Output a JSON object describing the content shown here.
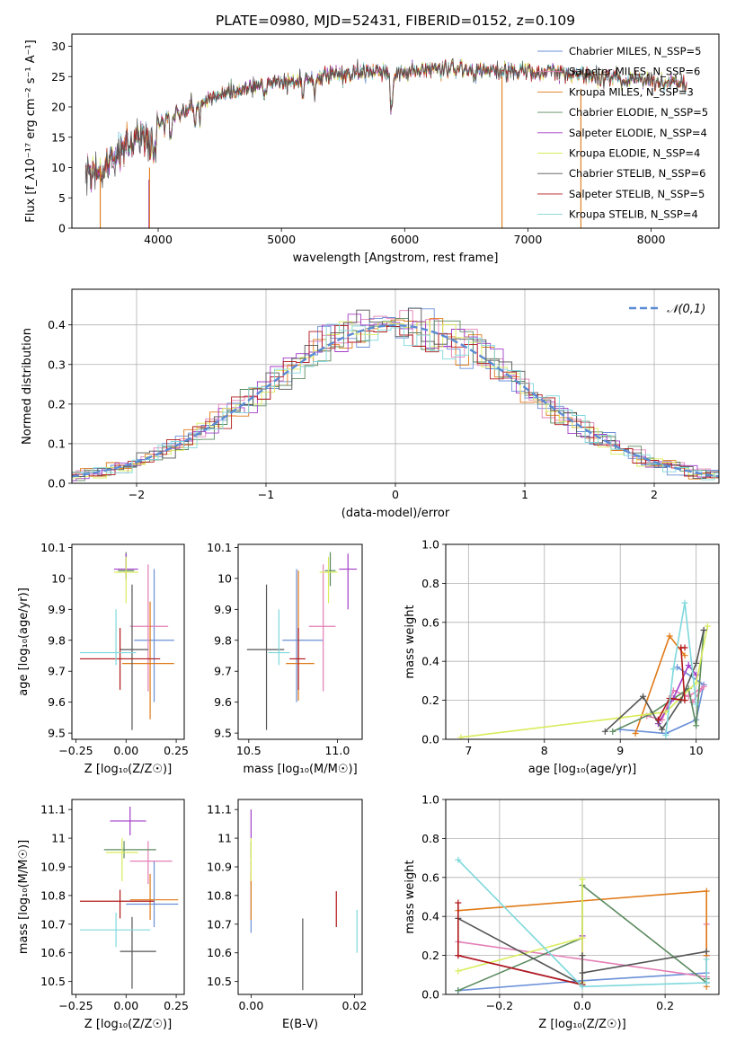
{
  "figure": {
    "title": "PLATE=0980, MJD=52431, FIBERID=0152, z=0.109"
  },
  "colors": {
    "Chabrier MILES": "#6a8fd8",
    "Salpeter MILES": "#e37fb5",
    "Kroupa MILES": "#e07a18",
    "Chabrier ELODIE": "#5a8a5e",
    "Salpeter ELODIE": "#a23dc8",
    "Kroupa ELODIE": "#d9ec5b",
    "Chabrier STELIB": "#555555",
    "Salpeter STELIB": "#b01818",
    "Kroupa STELIB": "#7fd8dc"
  },
  "chart_data": [
    {
      "id": "spectrum",
      "type": "line",
      "xlabel": "wavelength [Angstrom, rest frame]",
      "ylabel": "Flux [f_λ10⁻¹⁷ erg cm⁻² s⁻¹ A⁻¹]",
      "xlim": [
        3300,
        8550
      ],
      "ylim": [
        0,
        32
      ],
      "xticks": [
        4000,
        5000,
        6000,
        7000,
        8000
      ],
      "yticks": [
        0,
        5,
        10,
        15,
        20,
        25,
        30
      ],
      "legend_position": "right",
      "legend": [
        "Chabrier MILES, N_SSP=5",
        "Salpeter MILES, N_SSP=6",
        "Kroupa MILES, N_SSP=3",
        "Chabrier ELODIE, N_SSP=5",
        "Salpeter ELODIE, N_SSP=4",
        "Kroupa ELODIE, N_SSP=4",
        "Chabrier STELIB, N_SSP=6",
        "Salpeter STELIB, N_SSP=5",
        "Kroupa STELIB, N_SSP=4"
      ],
      "continuum": {
        "x": [
          3410,
          3550,
          3700,
          3850,
          3950,
          4050,
          4150,
          4300,
          4450,
          4600,
          4800,
          5000,
          5200,
          5400,
          5600,
          5800,
          5900,
          6000,
          6200,
          6400,
          6600,
          6800,
          7000,
          7200,
          7400,
          7600,
          7800,
          8000,
          8200,
          8300
        ],
        "y": [
          8,
          9.5,
          13,
          15,
          16,
          17.5,
          19,
          20.5,
          21.5,
          22.5,
          23.5,
          24,
          24.7,
          25.3,
          25.7,
          26,
          25.5,
          26,
          26.3,
          26.2,
          26.1,
          26,
          25.9,
          25.6,
          25.3,
          25,
          24.6,
          24.2,
          23.9,
          23.7
        ]
      }
    },
    {
      "id": "residuals",
      "type": "step",
      "xlabel": "(data-model)/error",
      "ylabel": "Normed distribution",
      "xlim": [
        -2.5,
        2.5
      ],
      "ylim": [
        0,
        0.49
      ],
      "xticks": [
        -2,
        -1,
        0,
        1,
        2
      ],
      "xticklabels": [
        "−2",
        "−1",
        "0",
        "1",
        "2"
      ],
      "yticks": [
        0,
        0.1,
        0.2,
        0.3,
        0.4
      ],
      "yticklabels": [
        "0.0",
        "0.1",
        "0.2",
        "0.3",
        "0.4"
      ],
      "grid": true,
      "legend": [
        "𝒩(0,1)"
      ],
      "legend_position": "top-right"
    },
    {
      "id": "age-vs-Z",
      "type": "errorbar",
      "xlabel": "Z [log₁₀(Z/Z☉)]",
      "ylabel": "age  [log₁₀(age/yr)]",
      "xlim": [
        -0.27,
        0.29
      ],
      "ylim": [
        9.48,
        10.11
      ],
      "xticks": [
        -0.25,
        0,
        0.25
      ],
      "xticklabels": [
        "−0.25",
        "0.00",
        "0.25"
      ],
      "yticks": [
        9.5,
        9.6,
        9.7,
        9.8,
        9.9,
        10.0,
        10.1
      ],
      "points": [
        {
          "s": "Chabrier MILES",
          "x": 0.14,
          "xe": [
            0.1,
            0.1
          ],
          "y": 9.8,
          "ye": [
            0.2,
            0.23
          ]
        },
        {
          "s": "Salpeter MILES",
          "x": 0.11,
          "xe": [
            0.09,
            0.1
          ],
          "y": 9.845,
          "ye": [
            0.21,
            0.2
          ]
        },
        {
          "s": "Kroupa MILES",
          "x": 0.12,
          "xe": [
            0.14,
            0.12
          ],
          "y": 9.725,
          "ye": [
            0.18,
            0.2
          ]
        },
        {
          "s": "Chabrier ELODIE",
          "x": 0.0,
          "xe": [
            0.04,
            0.04
          ],
          "y": 10.025,
          "ye": [
            0.03,
            0.06
          ]
        },
        {
          "s": "Salpeter ELODIE",
          "x": 0.0,
          "xe": [
            0.06,
            0.06
          ],
          "y": 10.03,
          "ye": [
            0.03,
            0.05
          ]
        },
        {
          "s": "Kroupa ELODIE",
          "x": 0.0,
          "xe": [
            0.06,
            0.06
          ],
          "y": 10.02,
          "ye": [
            0.1,
            0.05
          ]
        },
        {
          "s": "Chabrier STELIB",
          "x": 0.03,
          "xe": [
            0.06,
            0.08
          ],
          "y": 9.77,
          "ye": [
            0.26,
            0.21
          ]
        },
        {
          "s": "Salpeter STELIB",
          "x": -0.03,
          "xe": [
            0.2,
            0.2
          ],
          "y": 9.74,
          "ye": [
            0.1,
            0.1
          ]
        },
        {
          "s": "Kroupa STELIB",
          "x": -0.05,
          "xe": [
            0.18,
            0.1
          ],
          "y": 9.76,
          "ye": [
            0.04,
            0.14
          ]
        }
      ]
    },
    {
      "id": "age-vs-mass",
      "type": "errorbar",
      "xlabel": "mass [log₁₀(M/M☉)]",
      "ylabel": "",
      "xlim": [
        10.44,
        11.14
      ],
      "ylim": [
        9.48,
        10.11
      ],
      "xticks": [
        10.5,
        11.0
      ],
      "xticklabels": [
        "10.5",
        "11.0"
      ],
      "yticks": [
        9.5,
        9.6,
        9.7,
        9.8,
        9.9,
        10.0,
        10.1
      ],
      "points": [
        {
          "s": "Chabrier MILES",
          "x": 10.77,
          "xe": [
            0.08,
            0.15
          ],
          "y": 9.8,
          "ye": [
            0.2,
            0.23
          ]
        },
        {
          "s": "Salpeter MILES",
          "x": 10.92,
          "xe": [
            0.08,
            0.07
          ],
          "y": 9.845,
          "ye": [
            0.21,
            0.2
          ]
        },
        {
          "s": "Kroupa MILES",
          "x": 10.78,
          "xe": [
            0.07,
            0.09
          ],
          "y": 9.725,
          "ye": [
            0.12,
            0.3
          ]
        },
        {
          "s": "Chabrier ELODIE",
          "x": 10.96,
          "xe": [
            0.03,
            0.03
          ],
          "y": 10.025,
          "ye": [
            0.05,
            0.06
          ]
        },
        {
          "s": "Salpeter ELODIE",
          "x": 11.06,
          "xe": [
            0.05,
            0.05
          ],
          "y": 10.03,
          "ye": [
            0.13,
            0.05
          ]
        },
        {
          "s": "Kroupa ELODIE",
          "x": 10.95,
          "xe": [
            0.05,
            0.05
          ],
          "y": 10.02,
          "ye": [
            0.1,
            0.05
          ]
        },
        {
          "s": "Chabrier STELIB",
          "x": 10.6,
          "xe": [
            0.11,
            0.1
          ],
          "y": 9.77,
          "ye": [
            0.26,
            0.21
          ]
        },
        {
          "s": "Salpeter STELIB",
          "x": 10.78,
          "xe": [
            0.05,
            0.04
          ],
          "y": 9.74,
          "ye": [
            0.1,
            0.1
          ]
        },
        {
          "s": "Kroupa STELIB",
          "x": 10.67,
          "xe": [
            0.06,
            0.06
          ],
          "y": 9.76,
          "ye": [
            0.04,
            0.14
          ]
        }
      ]
    },
    {
      "id": "weight-vs-age",
      "type": "line",
      "xlabel": "age  [log₁₀(age/yr)]",
      "ylabel": "mass weight",
      "xlim": [
        6.7,
        10.3
      ],
      "ylim": [
        0,
        1.0
      ],
      "xticks": [
        7,
        8,
        9,
        10
      ],
      "yticks": [
        0,
        0.2,
        0.4,
        0.6,
        0.8,
        1.0
      ],
      "yticklabels": [
        "0.0",
        "0.2",
        "0.4",
        "0.6",
        "0.8",
        "1.0"
      ],
      "grid": true,
      "series": [
        {
          "s": "Chabrier MILES",
          "x": [
            9.0,
            9.6,
            10.0,
            10.1,
            9.75
          ],
          "y": [
            0.05,
            0.03,
            0.1,
            0.28,
            0.37
          ]
        },
        {
          "s": "Salpeter MILES",
          "x": [
            9.35,
            9.55,
            9.7,
            9.9,
            10.1,
            9.95
          ],
          "y": [
            0.12,
            0.1,
            0.25,
            0.22,
            0.27,
            0.19
          ]
        },
        {
          "s": "Kroupa MILES",
          "x": [
            9.2,
            9.65,
            9.85
          ],
          "y": [
            0.03,
            0.53,
            0.43
          ]
        },
        {
          "s": "Chabrier ELODIE",
          "x": [
            8.9,
            9.4,
            9.9,
            10.0,
            10.1
          ],
          "y": [
            0.04,
            0.13,
            0.26,
            0.07,
            0.56
          ]
        },
        {
          "s": "Salpeter ELODIE",
          "x": [
            9.5,
            9.7,
            9.9,
            10.0
          ],
          "y": [
            0.08,
            0.21,
            0.38,
            0.33
          ]
        },
        {
          "s": "Kroupa ELODIE",
          "x": [
            6.9,
            9.0,
            9.6,
            10.0,
            10.15
          ],
          "y": [
            0.01,
            0.11,
            0.14,
            0.29,
            0.58
          ]
        },
        {
          "s": "Chabrier STELIB",
          "x": [
            8.8,
            9.3,
            9.55,
            9.8,
            10.0,
            10.1
          ],
          "y": [
            0.04,
            0.22,
            0.05,
            0.2,
            0.39,
            0.56
          ]
        },
        {
          "s": "Salpeter STELIB",
          "x": [
            9.5,
            9.65,
            9.85,
            9.8,
            9.85
          ],
          "y": [
            0.1,
            0.21,
            0.2,
            0.47,
            0.47
          ]
        },
        {
          "s": "Kroupa STELIB",
          "x": [
            9.6,
            9.7,
            9.85,
            10.0
          ],
          "y": [
            0.02,
            0.36,
            0.7,
            0.18
          ]
        }
      ]
    },
    {
      "id": "mass-vs-Z",
      "type": "errorbar",
      "xlabel": "Z [log₁₀(Z/Z☉)]",
      "ylabel": "mass [log₁₀(M/M☉)]",
      "xlim": [
        -0.27,
        0.29
      ],
      "ylim": [
        10.455,
        11.135
      ],
      "xticks": [
        -0.25,
        0,
        0.25
      ],
      "xticklabels": [
        "−0.25",
        "0.00",
        "0.25"
      ],
      "yticks": [
        10.5,
        10.6,
        10.7,
        10.8,
        10.9,
        11.0,
        11.1
      ],
      "points": [
        {
          "s": "Chabrier MILES",
          "x": 0.14,
          "xe": [
            0.14,
            0.12
          ],
          "y": 10.77,
          "ye": [
            0.08,
            0.15
          ]
        },
        {
          "s": "Salpeter MILES",
          "x": 0.11,
          "xe": [
            0.09,
            0.12
          ],
          "y": 10.92,
          "ye": [
            0.08,
            0.07
          ]
        },
        {
          "s": "Kroupa MILES",
          "x": 0.12,
          "xe": [
            0.1,
            0.14
          ],
          "y": 10.785,
          "ye": [
            0.07,
            0.09
          ]
        },
        {
          "s": "Chabrier ELODIE",
          "x": -0.01,
          "xe": [
            0.1,
            0.16
          ],
          "y": 10.96,
          "ye": [
            0.03,
            0.03
          ]
        },
        {
          "s": "Salpeter ELODIE",
          "x": 0.02,
          "xe": [
            0.1,
            0.08
          ],
          "y": 11.06,
          "ye": [
            0.05,
            0.05
          ]
        },
        {
          "s": "Kroupa ELODIE",
          "x": -0.02,
          "xe": [
            0.08,
            0.08
          ],
          "y": 10.95,
          "ye": [
            0.1,
            0.05
          ]
        },
        {
          "s": "Chabrier STELIB",
          "x": 0.03,
          "xe": [
            0.06,
            0.12
          ],
          "y": 10.605,
          "ye": [
            0.13,
            0.12
          ]
        },
        {
          "s": "Salpeter STELIB",
          "x": -0.03,
          "xe": [
            0.2,
            0.17
          ],
          "y": 10.78,
          "ye": [
            0.06,
            0.04
          ]
        },
        {
          "s": "Kroupa STELIB",
          "x": -0.05,
          "xe": [
            0.18,
            0.17
          ],
          "y": 10.68,
          "ye": [
            0.06,
            0.06
          ]
        }
      ]
    },
    {
      "id": "mass-vs-EBV",
      "type": "errorbar",
      "xlabel": "E(B-V)",
      "ylabel": "",
      "xlim": [
        -0.0025,
        0.0215
      ],
      "ylim": [
        10.455,
        11.135
      ],
      "xticks": [
        0.0,
        0.02
      ],
      "xticklabels": [
        "0.00",
        "0.02"
      ],
      "yticks": [
        10.5,
        10.6,
        10.7,
        10.8,
        10.9,
        11.0,
        11.1
      ],
      "points": [
        {
          "s": "Chabrier MILES",
          "x": 0.0,
          "xe": [
            0,
            0
          ],
          "y": 10.77,
          "ye": [
            0.1,
            0.15
          ]
        },
        {
          "s": "Salpeter MILES",
          "x": 0.0,
          "xe": [
            0,
            0
          ],
          "y": 10.92,
          "ye": [
            0.08,
            0.07
          ]
        },
        {
          "s": "Kroupa MILES",
          "x": 0.0,
          "xe": [
            0,
            0
          ],
          "y": 10.785,
          "ye": [
            0.07,
            0.09
          ]
        },
        {
          "s": "Chabrier ELODIE",
          "x": 0.0,
          "xe": [
            0,
            0
          ],
          "y": 10.96,
          "ye": [
            0.03,
            0.03
          ]
        },
        {
          "s": "Salpeter ELODIE",
          "x": 0.0,
          "xe": [
            0,
            0
          ],
          "y": 11.05,
          "ye": [
            0.05,
            0.05
          ]
        },
        {
          "s": "Kroupa ELODIE",
          "x": 0.0,
          "xe": [
            0,
            0
          ],
          "y": 10.95,
          "ye": [
            0.1,
            0.05
          ]
        },
        {
          "s": "Chabrier STELIB",
          "x": 0.01,
          "xe": [
            0,
            0
          ],
          "y": 10.6,
          "ye": [
            0.13,
            0.12
          ]
        },
        {
          "s": "Salpeter STELIB",
          "x": 0.0165,
          "xe": [
            0,
            0
          ],
          "y": 10.75,
          "ye": [
            0.06,
            0.065
          ]
        },
        {
          "s": "Kroupa STELIB",
          "x": 0.0205,
          "xe": [
            0,
            0
          ],
          "y": 10.68,
          "ye": [
            0.08,
            0.07
          ]
        }
      ]
    },
    {
      "id": "weight-vs-Z",
      "type": "line",
      "xlabel": "Z [log₁₀(Z/Z☉)]",
      "ylabel": "mass weight",
      "xlim": [
        -0.33,
        0.33
      ],
      "ylim": [
        0,
        1.0
      ],
      "xticks": [
        -0.2,
        0,
        0.2
      ],
      "xticklabels": [
        "−0.2",
        "0.0",
        "0.2"
      ],
      "yticks": [
        0,
        0.2,
        0.4,
        0.6,
        0.8,
        1.0
      ],
      "yticklabels": [
        "0.0",
        "0.2",
        "0.4",
        "0.6",
        "0.8",
        "1.0"
      ],
      "grid": true,
      "series": [
        {
          "s": "Chabrier MILES",
          "x": [
            -0.3,
            0.0,
            0.3,
            0.3,
            0.3
          ],
          "y": [
            0.02,
            0.07,
            0.11,
            0.06,
            0.2
          ]
        },
        {
          "s": "Salpeter MILES",
          "x": [
            -0.3,
            0.3,
            0.3,
            0.3
          ],
          "y": [
            0.27,
            0.09,
            0.36,
            0.2
          ]
        },
        {
          "s": "Kroupa MILES",
          "x": [
            -0.3,
            0.3,
            0.3,
            0.3
          ],
          "y": [
            0.43,
            0.53,
            0.2,
            0.04
          ]
        },
        {
          "s": "Chabrier ELODIE",
          "x": [
            -0.3,
            0.0,
            0.0,
            0.3,
            0.3
          ],
          "y": [
            0.02,
            0.29,
            0.56,
            0.06,
            0.08
          ]
        },
        {
          "s": "Salpeter ELODIE",
          "x": [
            -0.3,
            0.0,
            0.0
          ],
          "y": [
            0.2,
            0.05,
            0.3
          ]
        },
        {
          "s": "Kroupa ELODIE",
          "x": [
            -0.3,
            0.0,
            0.0,
            0.0
          ],
          "y": [
            0.12,
            0.29,
            0.59,
            0.06
          ]
        },
        {
          "s": "Chabrier STELIB",
          "x": [
            -0.3,
            0.0,
            0.0,
            0.0,
            0.3
          ],
          "y": [
            0.39,
            0.05,
            0.2,
            0.11,
            0.22
          ]
        },
        {
          "s": "Salpeter STELIB",
          "x": [
            -0.3,
            -0.3,
            0.0
          ],
          "y": [
            0.47,
            0.2,
            0.05
          ]
        },
        {
          "s": "Kroupa STELIB",
          "x": [
            -0.3,
            0.0,
            0.3,
            0.3
          ],
          "y": [
            0.69,
            0.04,
            0.06,
            0.18
          ]
        }
      ]
    }
  ]
}
